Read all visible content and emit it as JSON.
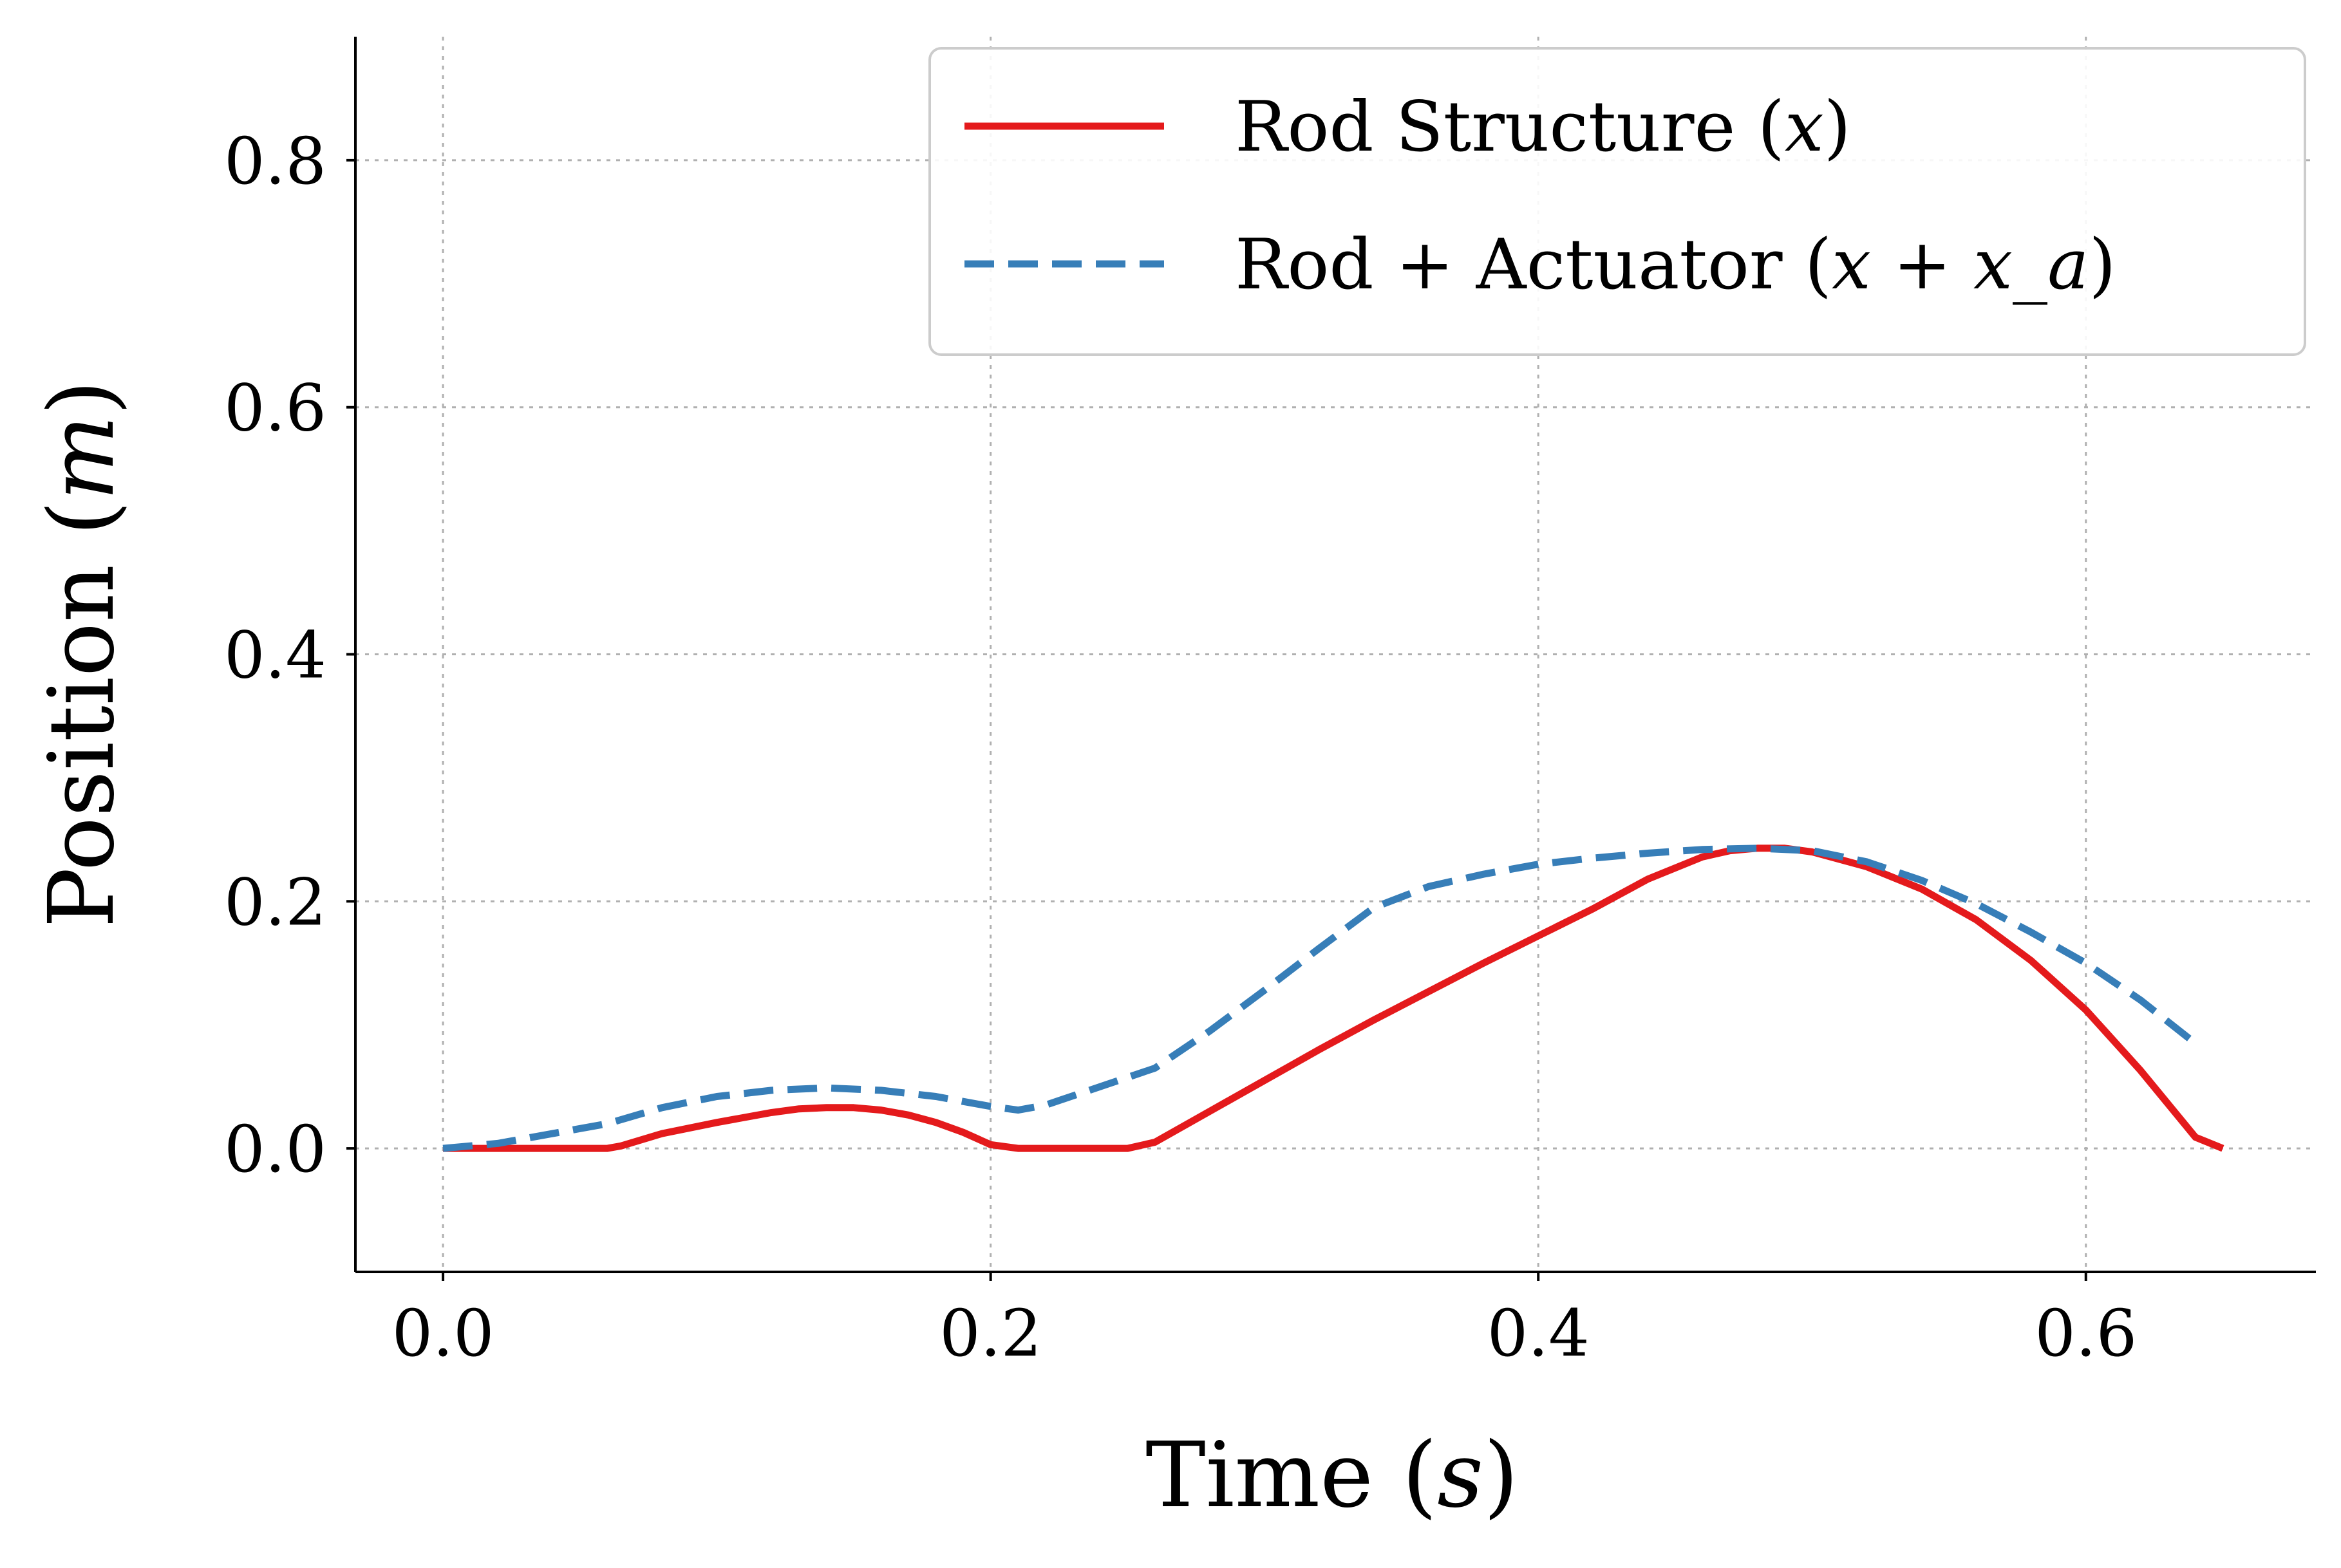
{
  "chart_data": {
    "type": "line",
    "xlabel_text": "Time",
    "xlabel_math": "s",
    "ylabel_text": "Position",
    "ylabel_math": "m",
    "xlim": [
      -0.032,
      0.684
    ],
    "ylim": [
      -0.1,
      0.9
    ],
    "xticks": [
      0.0,
      0.2,
      0.4,
      0.6
    ],
    "xtick_labels": [
      "0.0",
      "0.2",
      "0.4",
      "0.6"
    ],
    "yticks": [
      0.0,
      0.2,
      0.4,
      0.6,
      0.8
    ],
    "ytick_labels": [
      "0.0",
      "0.2",
      "0.4",
      "0.6",
      "0.8"
    ],
    "grid": true,
    "legend_position": "top-right",
    "series": [
      {
        "name_text": "Rod Structure",
        "name_math": "x",
        "color": "#e41a1c",
        "style": "solid",
        "x": [
          0.0,
          0.02,
          0.04,
          0.06,
          0.065,
          0.08,
          0.1,
          0.12,
          0.13,
          0.14,
          0.15,
          0.16,
          0.17,
          0.18,
          0.19,
          0.2,
          0.21,
          0.22,
          0.23,
          0.24,
          0.25,
          0.26,
          0.28,
          0.3,
          0.32,
          0.34,
          0.36,
          0.38,
          0.4,
          0.42,
          0.44,
          0.46,
          0.47,
          0.48,
          0.49,
          0.5,
          0.52,
          0.54,
          0.56,
          0.58,
          0.6,
          0.62,
          0.64,
          0.65
        ],
        "y": [
          0.0,
          0.0,
          0.0,
          0.0,
          0.002,
          0.012,
          0.021,
          0.029,
          0.032,
          0.033,
          0.033,
          0.031,
          0.027,
          0.021,
          0.013,
          0.003,
          0.0,
          0.0,
          0.0,
          0.0,
          0.0,
          0.005,
          0.03,
          0.055,
          0.08,
          0.104,
          0.127,
          0.15,
          0.172,
          0.194,
          0.218,
          0.236,
          0.241,
          0.243,
          0.243,
          0.24,
          0.228,
          0.21,
          0.185,
          0.152,
          0.112,
          0.063,
          0.009,
          0.0
        ]
      },
      {
        "name_text": "Rod + Actuator",
        "name_math": "x + x_a",
        "color": "#377eb8",
        "style": "dashed",
        "x": [
          0.0,
          0.02,
          0.04,
          0.06,
          0.08,
          0.1,
          0.12,
          0.14,
          0.16,
          0.18,
          0.2,
          0.21,
          0.22,
          0.24,
          0.26,
          0.28,
          0.3,
          0.32,
          0.34,
          0.36,
          0.38,
          0.4,
          0.42,
          0.44,
          0.46,
          0.48,
          0.5,
          0.52,
          0.54,
          0.56,
          0.58,
          0.6,
          0.62,
          0.64
        ],
        "y": [
          0.0,
          0.004,
          0.012,
          0.02,
          0.033,
          0.042,
          0.047,
          0.049,
          0.047,
          0.042,
          0.034,
          0.031,
          0.035,
          0.05,
          0.065,
          0.095,
          0.128,
          0.162,
          0.195,
          0.212,
          0.222,
          0.23,
          0.235,
          0.239,
          0.242,
          0.243,
          0.241,
          0.232,
          0.217,
          0.198,
          0.175,
          0.15,
          0.12,
          0.085
        ]
      }
    ]
  }
}
